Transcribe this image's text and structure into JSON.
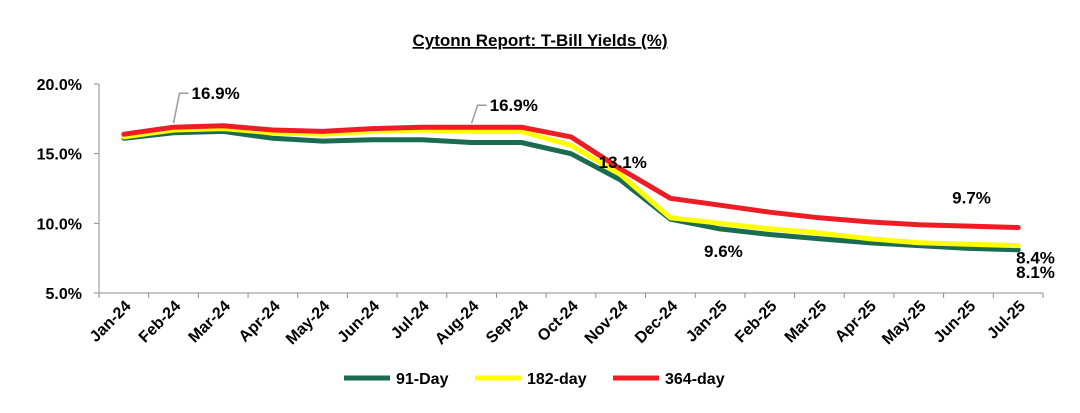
{
  "chart_data": {
    "type": "line",
    "title": "Cytonn Report: T-Bill Yields (%)",
    "xlabel": "",
    "ylabel": "",
    "categories": [
      "Jan-24",
      "Feb-24",
      "Mar-24",
      "Apr-24",
      "May-24",
      "Jun-24",
      "Jul-24",
      "Aug-24",
      "Sep-24",
      "Oct-24",
      "Nov-24",
      "Dec-24",
      "Jan-25",
      "Feb-25",
      "Mar-25",
      "Apr-25",
      "May-25",
      "Jun-25",
      "Jul-25"
    ],
    "ylim": [
      5.0,
      20.0
    ],
    "yticks": [
      "5.0%",
      "10.0%",
      "15.0%",
      "20.0%"
    ],
    "ytick_values": [
      5,
      10,
      15,
      20
    ],
    "grid": false,
    "legend_position": "bottom",
    "series": [
      {
        "name": "91-Day",
        "color": "#1a6b4f",
        "values": [
          16.1,
          16.5,
          16.6,
          16.1,
          15.9,
          16.0,
          16.0,
          15.8,
          15.8,
          15.0,
          13.1,
          10.3,
          9.6,
          9.2,
          8.9,
          8.6,
          8.4,
          8.2,
          8.1
        ]
      },
      {
        "name": "182-day",
        "color": "#ffff00",
        "values": [
          16.2,
          16.7,
          16.8,
          16.5,
          16.4,
          16.6,
          16.7,
          16.6,
          16.6,
          15.6,
          13.5,
          10.4,
          10.0,
          9.6,
          9.3,
          8.9,
          8.6,
          8.5,
          8.4
        ]
      },
      {
        "name": "364-day",
        "color": "#ee1c25",
        "values": [
          16.4,
          16.9,
          17.0,
          16.7,
          16.6,
          16.8,
          16.9,
          16.9,
          16.9,
          16.2,
          13.9,
          11.8,
          11.3,
          10.8,
          10.4,
          10.1,
          9.9,
          9.8,
          9.7
        ]
      }
    ],
    "annotations": [
      {
        "text": "16.9%",
        "series": 2,
        "index": 1
      },
      {
        "text": "16.9%",
        "series": 2,
        "index": 7
      },
      {
        "text": "13.1%",
        "series": 0,
        "index": 10
      },
      {
        "text": "9.6%",
        "series": 0,
        "index": 12
      },
      {
        "text": "9.7%",
        "series": 2,
        "index": 18
      },
      {
        "text": "8.4%",
        "series": 1,
        "index": 18
      },
      {
        "text": "8.1%",
        "series": 0,
        "index": 18
      }
    ]
  }
}
